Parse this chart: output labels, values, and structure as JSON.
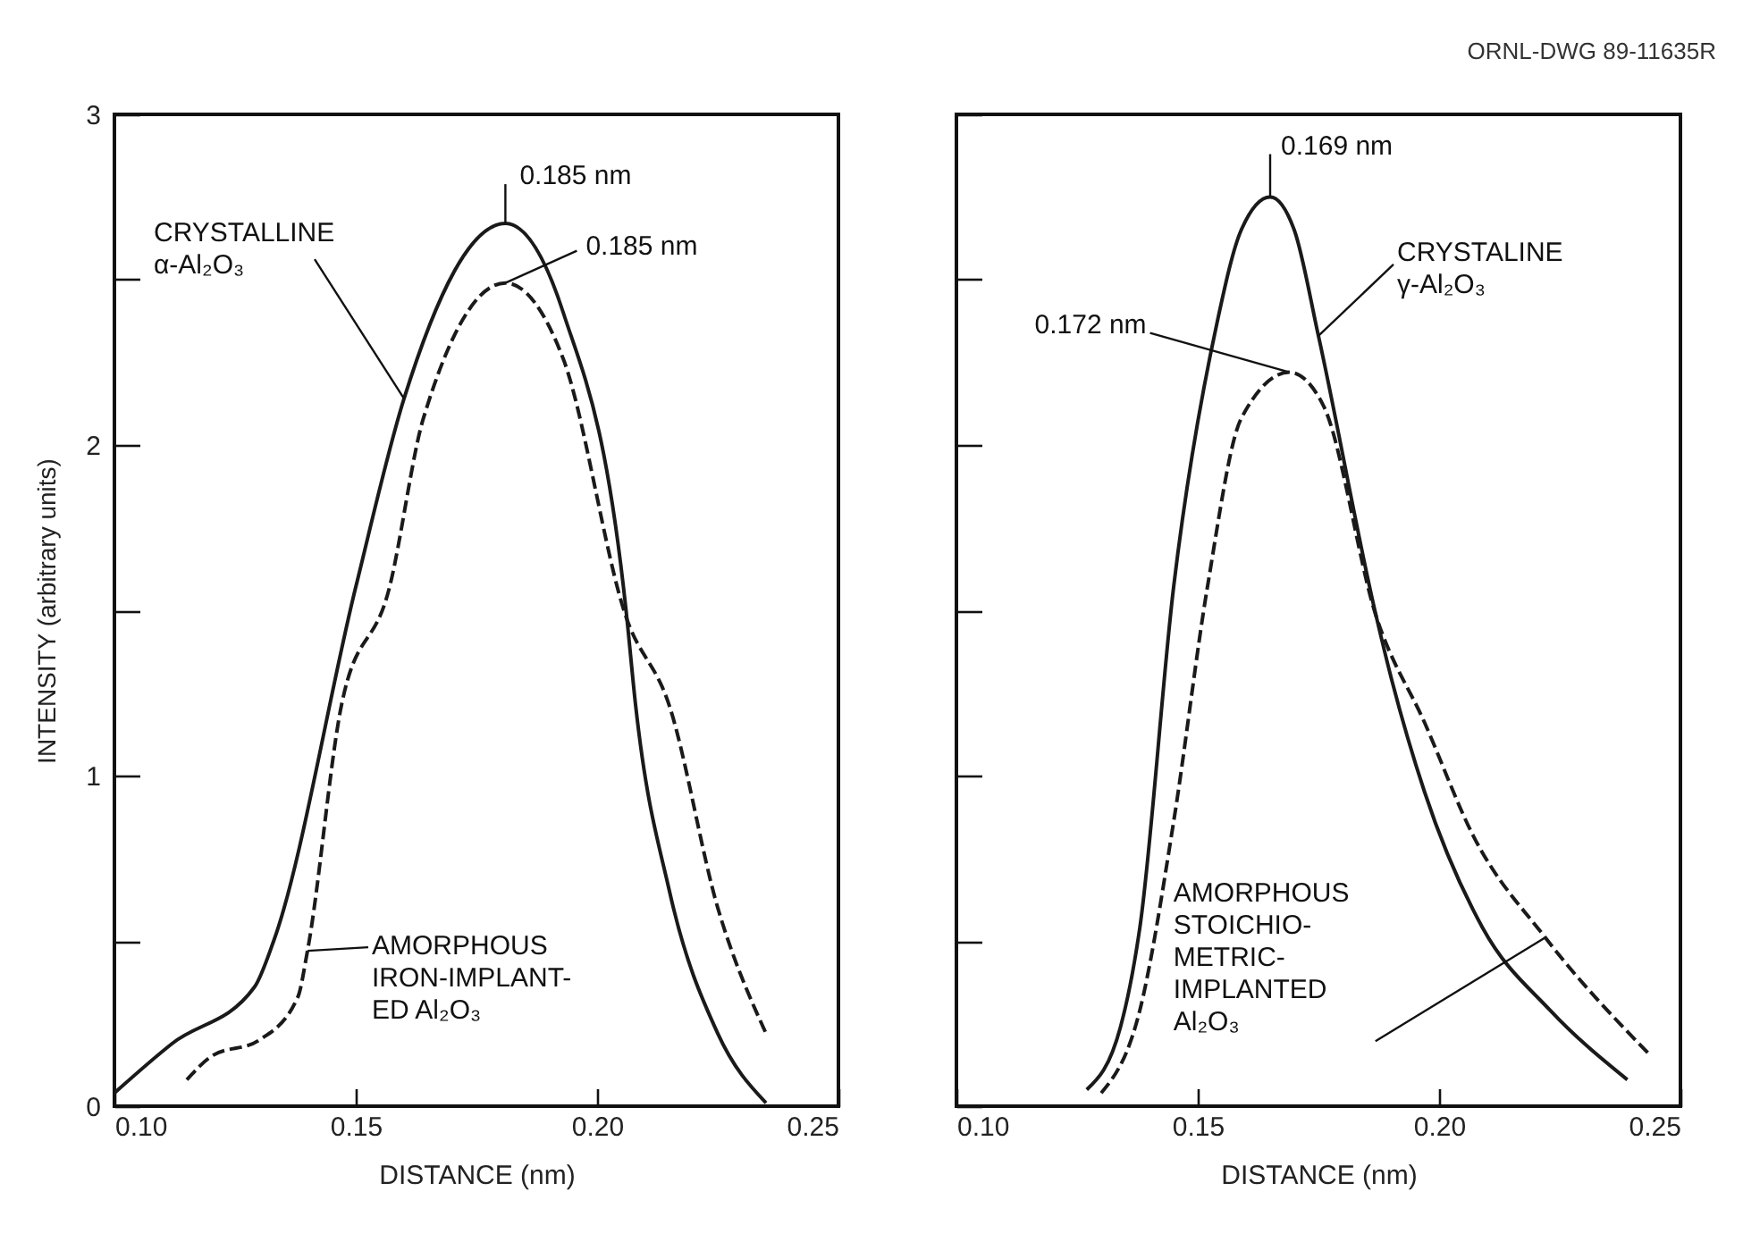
{
  "chart_data": [
    {
      "type": "line",
      "xlabel": "DISTANCE (nm)",
      "ylabel": "INTENSITY (arbitrary units)",
      "xlim": [
        0.1,
        0.25
      ],
      "ylim": [
        0,
        3
      ],
      "xticks": [
        {
          "value": 0.1,
          "label": "0.10"
        },
        {
          "value": 0.15,
          "label": "0.15"
        },
        {
          "value": 0.2,
          "label": "0.20"
        },
        {
          "value": 0.25,
          "label": "0.25"
        }
      ],
      "yticks": [
        0,
        {
          "value": 0.5,
          "label": null
        },
        1,
        {
          "value": 1.5,
          "label": null
        },
        2,
        {
          "value": 2.5,
          "label": null
        },
        3
      ],
      "grid": false,
      "legend": false,
      "series": [
        {
          "color": "#1a1a1a",
          "line_style": "solid",
          "x": [
            0.1,
            0.112,
            0.129,
            0.133,
            0.15,
            0.16,
            0.181,
            0.193,
            0.206,
            0.208,
            0.215,
            0.225,
            0.235
          ],
          "values": [
            0.04,
            0.19,
            0.36,
            0.5,
            1.57,
            2.14,
            2.67,
            2.4,
            1.5,
            1.21,
            0.65,
            0.22,
            0.01
          ]
        },
        {
          "color": "#1a1a1a",
          "line_style": "dashed",
          "x": [
            0.115,
            0.12,
            0.13,
            0.138,
            0.14,
            0.147,
            0.157,
            0.164,
            0.181,
            0.193,
            0.206,
            0.215,
            0.225,
            0.235
          ],
          "values": [
            0.08,
            0.15,
            0.2,
            0.33,
            0.47,
            1.21,
            1.57,
            2.08,
            2.49,
            2.26,
            1.48,
            1.21,
            0.6,
            0.22
          ]
        }
      ],
      "annotations": [
        {
          "text": "0.185 nm",
          "x": 0.181,
          "y": 2.67
        },
        {
          "text": "0.185 nm",
          "x": 0.181,
          "y": 2.49
        },
        {
          "text": "CRYSTALLINE\nα-Al₂O₃",
          "x": 0.16,
          "y": 2.14
        },
        {
          "text": "AMORPHOUS\nIRON-IMPLANT-\nED Al₂O₃",
          "x": 0.14,
          "y": 0.47
        }
      ]
    },
    {
      "type": "line",
      "xlabel": "DISTANCE (nm)",
      "xlim": [
        0.1,
        0.25
      ],
      "ylim": [
        0,
        3
      ],
      "xticks": [
        {
          "value": 0.1,
          "label": "0.10"
        },
        {
          "value": 0.15,
          "label": "0.15"
        },
        {
          "value": 0.2,
          "label": "0.20"
        },
        {
          "value": 0.25,
          "label": "0.25"
        }
      ],
      "yticks": [
        0,
        0.5,
        1,
        1.5,
        2,
        2.5,
        3
      ],
      "tick_labels": "x",
      "grid": false,
      "legend": false,
      "series": [
        {
          "color": "#1a1a1a",
          "line_style": "solid",
          "x": [
            0.127,
            0.134,
            0.138,
            0.145,
            0.154,
            0.159,
            0.165,
            0.17,
            0.175,
            0.187,
            0.19,
            0.197,
            0.209,
            0.223,
            0.239
          ],
          "values": [
            0.05,
            0.24,
            0.54,
            1.57,
            2.37,
            2.65,
            2.75,
            2.65,
            2.33,
            1.48,
            1.3,
            0.95,
            0.54,
            0.29,
            0.08
          ]
        },
        {
          "color": "#1a1a1a",
          "line_style": "dashed",
          "x": [
            0.13,
            0.138,
            0.145,
            0.152,
            0.159,
            0.169,
            0.176,
            0.187,
            0.197,
            0.207,
            0.222,
            0.244
          ],
          "values": [
            0.04,
            0.29,
            0.86,
            1.57,
            2.08,
            2.22,
            2.12,
            1.48,
            1.16,
            0.82,
            0.51,
            0.15
          ]
        }
      ],
      "annotations": [
        {
          "text": "0.169 nm",
          "x": 0.165,
          "y": 2.75
        },
        {
          "text": "0.172 nm",
          "x": 0.169,
          "y": 2.22
        },
        {
          "text": "CRYSTALINE\nγ-Al₂O₃",
          "x": 0.175,
          "y": 2.33
        },
        {
          "text": "AMORPHOUS\nSTOICHIO-\nMETRIC-\nIMPLANTED\nAl₂O₃",
          "x": 0.222,
          "y": 0.51
        },
        "ORNL-DWG 89-11635R"
      ]
    }
  ]
}
